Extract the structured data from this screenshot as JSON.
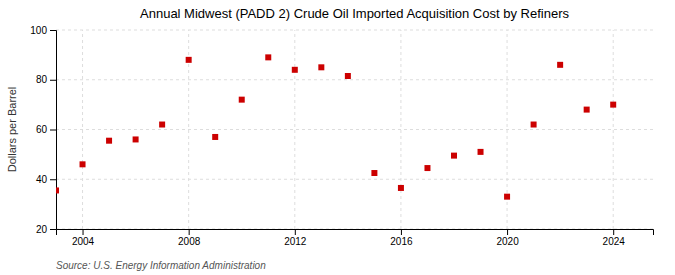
{
  "chart_data": {
    "type": "scatter",
    "title": "Annual Midwest (PADD 2) Crude Oil Imported Acquisition Cost by Refiners",
    "ylabel": "Dollars per Barrel",
    "source": "Source: U.S. Energy Information Administration",
    "x": [
      2003,
      2004,
      2005,
      2006,
      2007,
      2008,
      2009,
      2010,
      2011,
      2012,
      2013,
      2014,
      2015,
      2016,
      2017,
      2018,
      2019,
      2020,
      2021,
      2022,
      2023,
      2024
    ],
    "values": [
      35.5,
      46.0,
      55.5,
      56.0,
      62.0,
      88.0,
      57.0,
      72.0,
      89.0,
      84.0,
      85.0,
      81.5,
      42.5,
      36.5,
      44.5,
      49.5,
      51.0,
      33.0,
      62.0,
      86.0,
      68.0,
      70.0
    ],
    "color": "#cc0000",
    "marker": "square",
    "xlim": [
      2003,
      2025.5
    ],
    "xticks": [
      2004,
      2008,
      2012,
      2016,
      2020,
      2024
    ],
    "ylim": [
      20,
      100
    ],
    "yticks": [
      20,
      40,
      60,
      80,
      100
    ],
    "grid": true
  }
}
